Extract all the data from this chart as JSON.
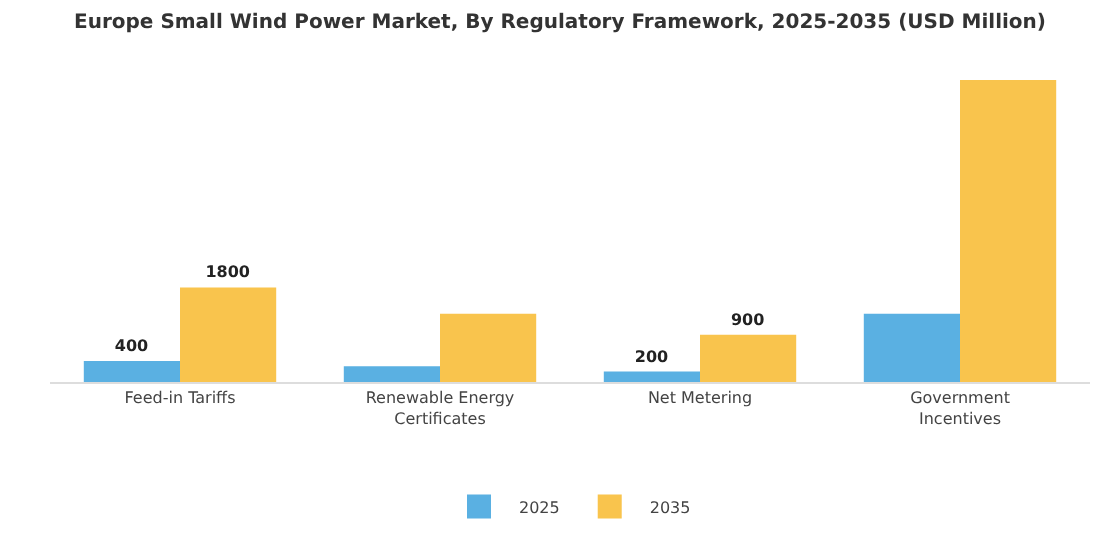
{
  "chart_data": {
    "type": "bar",
    "title": "Europe Small Wind Power Market, By Regulatory Framework, 2025-2035 (USD Million)",
    "categories": [
      "Feed-in Tariffs",
      "Renewable Energy Certificates",
      "Net Metering",
      "Government Incentives"
    ],
    "series": [
      {
        "name": "2025",
        "color": "#5ab0e2",
        "values": [
          400,
          300,
          200,
          1300
        ],
        "value_labels": [
          "400",
          null,
          "200",
          null
        ]
      },
      {
        "name": "2035",
        "color": "#f9c44d",
        "values": [
          1800,
          1300,
          900,
          5750
        ],
        "value_labels": [
          "1800",
          null,
          "900",
          null
        ]
      }
    ],
    "legend": "bottom"
  }
}
